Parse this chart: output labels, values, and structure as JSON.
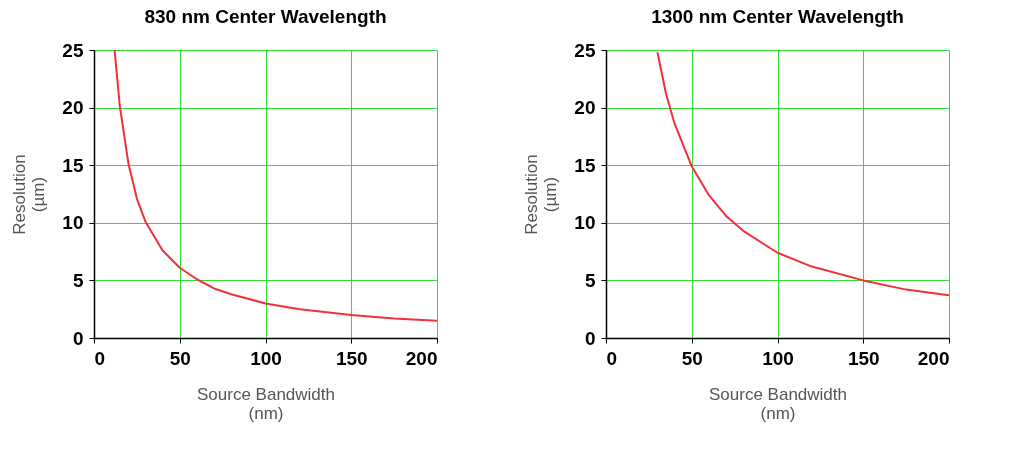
{
  "chart_data": [
    {
      "type": "line",
      "title": "830 nm Center Wavelength",
      "xlabel": "Source Bandwidth (nm)",
      "ylabel": "Resolution (µm)",
      "xlim": [
        0,
        200
      ],
      "ylim": [
        0,
        25
      ],
      "xticks": [
        0,
        50,
        100,
        150,
        200
      ],
      "yticks": [
        0,
        5,
        10,
        15,
        20,
        25
      ],
      "grid": true,
      "series": [
        {
          "color": "#f0303c",
          "x": [
            12,
            15,
            20,
            25,
            30,
            40,
            50,
            60,
            70,
            80,
            100,
            120,
            150,
            175,
            200
          ],
          "values": [
            25,
            20.2,
            15.2,
            12.1,
            10.1,
            7.6,
            6.1,
            5.1,
            4.3,
            3.8,
            3.0,
            2.5,
            2.0,
            1.7,
            1.5
          ]
        }
      ]
    },
    {
      "type": "line",
      "title": "1300 nm Center Wavelength",
      "xlabel": "Source Bandwidth (nm)",
      "ylabel": "Resolution (µm)",
      "xlim": [
        0,
        200
      ],
      "ylim": [
        0,
        25
      ],
      "xticks": [
        0,
        50,
        100,
        150,
        200
      ],
      "yticks": [
        0,
        5,
        10,
        15,
        20,
        25
      ],
      "grid": true,
      "series": [
        {
          "color": "#f0303c",
          "x": [
            30,
            35,
            40,
            50,
            60,
            70,
            80,
            100,
            120,
            150,
            175,
            200
          ],
          "values": [
            24.8,
            21.2,
            18.6,
            14.9,
            12.4,
            10.6,
            9.3,
            7.4,
            6.2,
            5.0,
            4.2,
            3.7
          ]
        }
      ]
    }
  ]
}
